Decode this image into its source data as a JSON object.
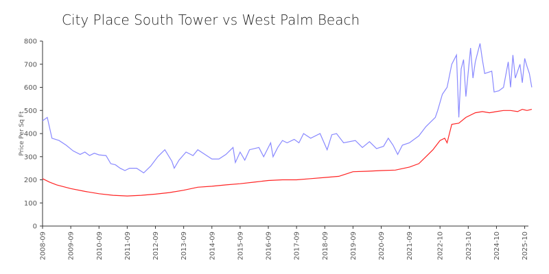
{
  "chart_data": {
    "type": "line",
    "title": "City Place South Tower vs West Palm Beach",
    "ylabel": "Price Per Sq Ft",
    "xlabel": "",
    "ylim": [
      0,
      800
    ],
    "yticks": [
      0,
      100,
      200,
      300,
      400,
      500,
      600,
      700,
      800
    ],
    "xlim": [
      "2008-09",
      "2025-11"
    ],
    "xticks": [
      "2008-09",
      "2009-09",
      "2010-09",
      "2011-09",
      "2012-09",
      "2013-09",
      "2014-09",
      "2015-09",
      "2016-09",
      "2017-09",
      "2018-09",
      "2019-09",
      "2020-09",
      "2021-09",
      "2022-10",
      "2023-10",
      "2024-10",
      "2025-10"
    ],
    "grid": false,
    "legend": "none",
    "series": [
      {
        "color": "#8888ff",
        "points": [
          [
            "2008-09",
            455
          ],
          [
            "2008-11",
            470
          ],
          [
            "2009-01",
            380
          ],
          [
            "2009-04",
            370
          ],
          [
            "2009-07",
            350
          ],
          [
            "2009-10",
            325
          ],
          [
            "2010-01",
            310
          ],
          [
            "2010-03",
            320
          ],
          [
            "2010-05",
            305
          ],
          [
            "2010-07",
            315
          ],
          [
            "2010-09",
            308
          ],
          [
            "2010-12",
            305
          ],
          [
            "2011-02",
            270
          ],
          [
            "2011-04",
            265
          ],
          [
            "2011-06",
            250
          ],
          [
            "2011-08",
            240
          ],
          [
            "2011-10",
            250
          ],
          [
            "2012-01",
            250
          ],
          [
            "2012-04",
            230
          ],
          [
            "2012-07",
            260
          ],
          [
            "2012-10",
            300
          ],
          [
            "2013-01",
            330
          ],
          [
            "2013-04",
            280
          ],
          [
            "2013-05",
            250
          ],
          [
            "2013-07",
            285
          ],
          [
            "2013-10",
            320
          ],
          [
            "2014-01",
            305
          ],
          [
            "2014-03",
            330
          ],
          [
            "2014-06",
            310
          ],
          [
            "2014-09",
            290
          ],
          [
            "2014-12",
            290
          ],
          [
            "2015-03",
            310
          ],
          [
            "2015-06",
            340
          ],
          [
            "2015-07",
            275
          ],
          [
            "2015-09",
            320
          ],
          [
            "2015-11",
            285
          ],
          [
            "2016-01",
            330
          ],
          [
            "2016-05",
            340
          ],
          [
            "2016-07",
            300
          ],
          [
            "2016-10",
            360
          ],
          [
            "2016-11",
            300
          ],
          [
            "2017-01",
            340
          ],
          [
            "2017-03",
            370
          ],
          [
            "2017-05",
            360
          ],
          [
            "2017-08",
            375
          ],
          [
            "2017-10",
            360
          ],
          [
            "2017-12",
            400
          ],
          [
            "2018-03",
            380
          ],
          [
            "2018-07",
            400
          ],
          [
            "2018-10",
            330
          ],
          [
            "2018-12",
            395
          ],
          [
            "2019-02",
            400
          ],
          [
            "2019-05",
            360
          ],
          [
            "2019-10",
            370
          ],
          [
            "2020-01",
            340
          ],
          [
            "2020-04",
            365
          ],
          [
            "2020-07",
            335
          ],
          [
            "2020-10",
            345
          ],
          [
            "2020-12",
            380
          ],
          [
            "2021-02",
            350
          ],
          [
            "2021-04",
            310
          ],
          [
            "2021-06",
            350
          ],
          [
            "2021-09",
            360
          ],
          [
            "2022-01",
            390
          ],
          [
            "2022-04",
            430
          ],
          [
            "2022-08",
            470
          ],
          [
            "2022-09",
            500
          ],
          [
            "2022-11",
            570
          ],
          [
            "2023-01",
            600
          ],
          [
            "2023-03",
            700
          ],
          [
            "2023-05",
            740
          ],
          [
            "2023-06",
            470
          ],
          [
            "2023-07",
            680
          ],
          [
            "2023-08",
            720
          ],
          [
            "2023-09",
            560
          ],
          [
            "2023-11",
            770
          ],
          [
            "2023-12",
            640
          ],
          [
            "2024-01",
            710
          ],
          [
            "2024-03",
            790
          ],
          [
            "2024-04",
            720
          ],
          [
            "2024-05",
            660
          ],
          [
            "2024-08",
            670
          ],
          [
            "2024-09",
            580
          ],
          [
            "2024-11",
            585
          ],
          [
            "2025-01",
            600
          ],
          [
            "2025-03",
            710
          ],
          [
            "2025-04",
            600
          ],
          [
            "2025-05",
            740
          ],
          [
            "2025-06",
            640
          ],
          [
            "2025-07",
            670
          ],
          [
            "2025-08",
            700
          ],
          [
            "2025-09",
            620
          ],
          [
            "2025-10",
            725
          ],
          [
            "2025-11",
            690
          ],
          [
            "2025-12",
            660
          ],
          [
            "2026-01",
            600
          ]
        ]
      },
      {
        "color": "#ff2222",
        "points": [
          [
            "2008-09",
            205
          ],
          [
            "2008-12",
            190
          ],
          [
            "2009-03",
            178
          ],
          [
            "2009-09",
            162
          ],
          [
            "2010-03",
            150
          ],
          [
            "2010-09",
            140
          ],
          [
            "2011-03",
            133
          ],
          [
            "2011-09",
            130
          ],
          [
            "2012-03",
            133
          ],
          [
            "2012-09",
            138
          ],
          [
            "2013-03",
            145
          ],
          [
            "2013-09",
            155
          ],
          [
            "2014-03",
            168
          ],
          [
            "2014-09",
            172
          ],
          [
            "2015-03",
            178
          ],
          [
            "2015-09",
            183
          ],
          [
            "2016-03",
            190
          ],
          [
            "2016-09",
            197
          ],
          [
            "2017-03",
            200
          ],
          [
            "2017-09",
            200
          ],
          [
            "2018-03",
            205
          ],
          [
            "2018-09",
            210
          ],
          [
            "2019-03",
            215
          ],
          [
            "2019-09",
            235
          ],
          [
            "2020-03",
            237
          ],
          [
            "2020-09",
            240
          ],
          [
            "2021-03",
            242
          ],
          [
            "2021-09",
            255
          ],
          [
            "2022-01",
            270
          ],
          [
            "2022-04",
            300
          ],
          [
            "2022-07",
            330
          ],
          [
            "2022-10",
            370
          ],
          [
            "2022-12",
            380
          ],
          [
            "2023-01",
            360
          ],
          [
            "2023-03",
            440
          ],
          [
            "2023-06",
            445
          ],
          [
            "2023-09",
            470
          ],
          [
            "2024-01",
            490
          ],
          [
            "2024-04",
            495
          ],
          [
            "2024-07",
            490
          ],
          [
            "2024-10",
            495
          ],
          [
            "2025-01",
            500
          ],
          [
            "2025-04",
            500
          ],
          [
            "2025-07",
            495
          ],
          [
            "2025-09",
            505
          ],
          [
            "2025-11",
            500
          ],
          [
            "2026-01",
            505
          ]
        ]
      }
    ]
  }
}
